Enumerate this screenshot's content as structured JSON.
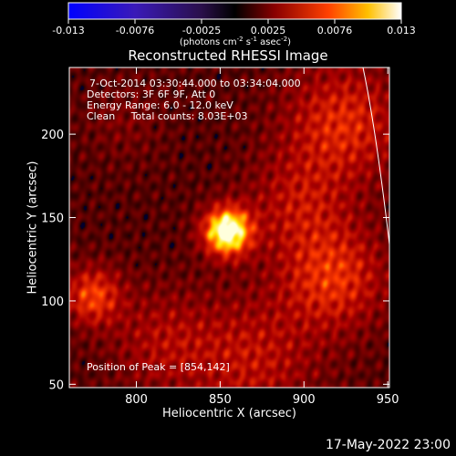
{
  "colorbar": {
    "ticks": [
      "-0.013",
      "-0.0076",
      "-0.0025",
      "0.0025",
      "0.0076",
      "0.013"
    ],
    "units_prefix": "(photons cm",
    "units_exp1": "-2",
    "units_mid1": " s",
    "units_exp2": "-1",
    "units_mid2": " asec",
    "units_exp3": "-2",
    "units_suffix": ")",
    "scale": "blue-purple-black-red-orange-yellow-white"
  },
  "plot": {
    "title": "Reconstructed RHESSI Image",
    "xlabel": "Heliocentric X (arcsec)",
    "ylabel": "Heliocentric Y (arcsec)",
    "x_ticks": [
      "800",
      "850",
      "900",
      "950"
    ],
    "y_ticks": [
      "50",
      "100",
      "150",
      "200"
    ],
    "xlim": [
      760,
      951
    ],
    "ylim": [
      48,
      240
    ],
    "info_lines": [
      "7-Oct-2014 03:30:44.000 to 03:34:04.000",
      "Detectors: 3F 6F 9F, Att 0",
      "Energy Range: 6.0 - 12.0 keV",
      "Clean     Total counts: 8.03E+03"
    ],
    "peak_text": "Position of Peak = [854,142]",
    "peak": [
      854,
      142
    ],
    "limb_color": "#ffffff"
  },
  "footer": {
    "timestamp": "17-May-2022 23:00"
  }
}
